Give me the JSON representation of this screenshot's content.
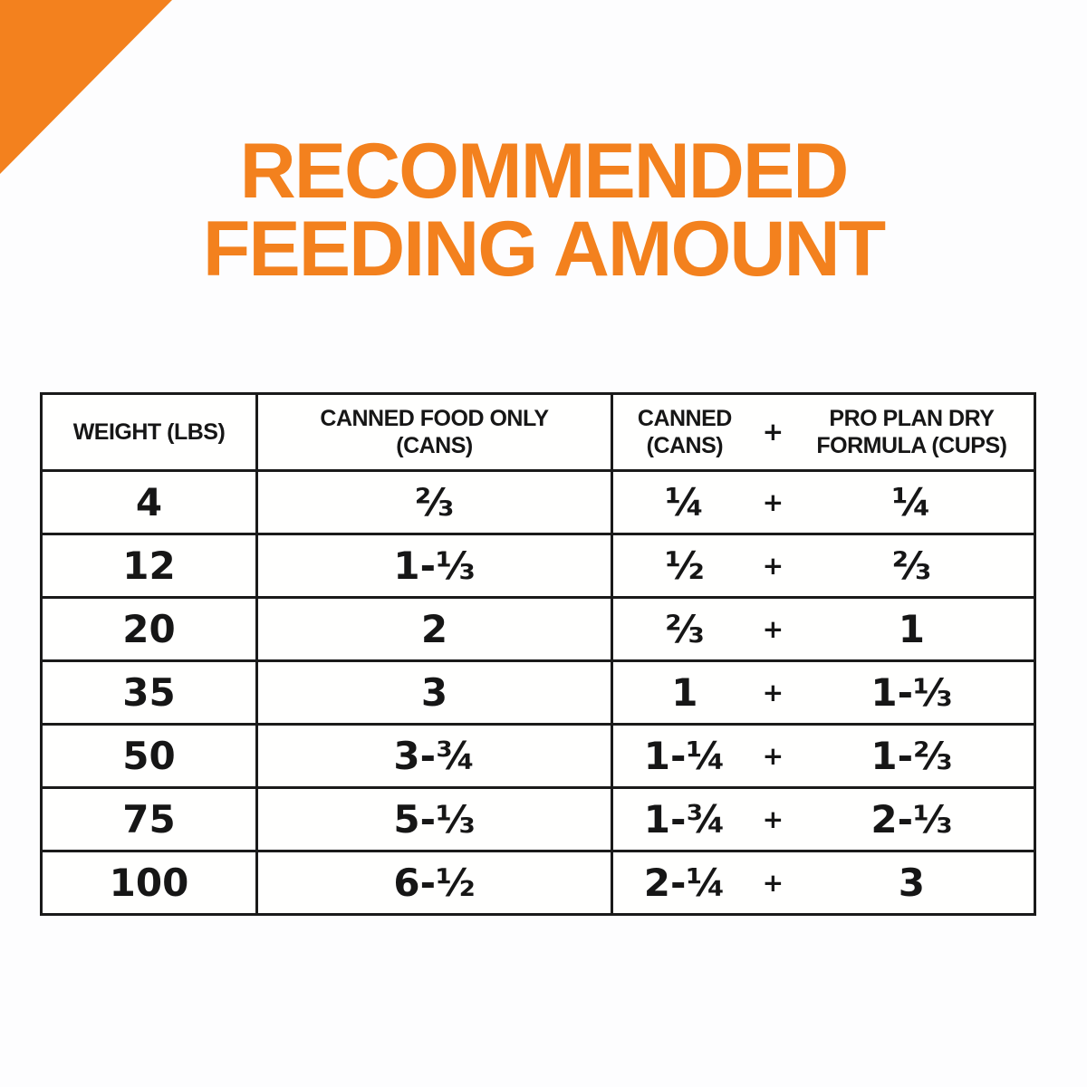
{
  "colors": {
    "orange": "#F3811E",
    "table_line": "#1a1a1a",
    "background": "#fdfdfe"
  },
  "title": {
    "line1": "RECOMMENDED",
    "line2": "FEEDING AMOUNT"
  },
  "table": {
    "header": {
      "weight": "WEIGHT (LBS)",
      "canned_only_line1": "CANNED FOOD ONLY",
      "canned_only_line2": "(CANS)",
      "combo_cans_line1": "CANNED",
      "combo_cans_line2": "(CANS)",
      "plus": "+",
      "combo_dry_line1": "PRO PLAN DRY",
      "combo_dry_line2": "FORMULA (CUPS)"
    },
    "rows": [
      {
        "weight": "4",
        "canned_only": "⅔",
        "combo_cans": "¼",
        "plus": "+",
        "combo_dry": "¼"
      },
      {
        "weight": "12",
        "canned_only": "1-⅓",
        "combo_cans": "½",
        "plus": "+",
        "combo_dry": "⅔"
      },
      {
        "weight": "20",
        "canned_only": "2",
        "combo_cans": "⅔",
        "plus": "+",
        "combo_dry": "1"
      },
      {
        "weight": "35",
        "canned_only": "3",
        "combo_cans": "1",
        "plus": "+",
        "combo_dry": "1-⅓"
      },
      {
        "weight": "50",
        "canned_only": "3-¾",
        "combo_cans": "1-¼",
        "plus": "+",
        "combo_dry": "1-⅔"
      },
      {
        "weight": "75",
        "canned_only": "5-⅓",
        "combo_cans": "1-¾",
        "plus": "+",
        "combo_dry": "2-⅓"
      },
      {
        "weight": "100",
        "canned_only": "6-½",
        "combo_cans": "2-¼",
        "plus": "+",
        "combo_dry": "3"
      }
    ]
  },
  "chart_data": {
    "type": "table",
    "title": "RECOMMENDED FEEDING AMOUNT",
    "columns": [
      "Weight (lbs)",
      "Canned Food Only (cans)",
      "Canned (cans)",
      "Pro Plan Dry Formula (cups)"
    ],
    "rows": [
      [
        "4",
        "2/3",
        "1/4",
        "1/4"
      ],
      [
        "12",
        "1-1/3",
        "1/2",
        "2/3"
      ],
      [
        "20",
        "2",
        "2/3",
        "1"
      ],
      [
        "35",
        "3",
        "1",
        "1-1/3"
      ],
      [
        "50",
        "3-3/4",
        "1-1/4",
        "1-2/3"
      ],
      [
        "75",
        "5-1/3",
        "1-3/4",
        "2-1/3"
      ],
      [
        "100",
        "6-1/2",
        "2-1/4",
        "3"
      ]
    ]
  }
}
